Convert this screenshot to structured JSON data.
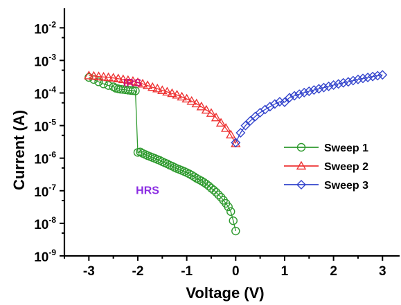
{
  "chart_data": {
    "type": "scatter",
    "title": "",
    "xlabel": "Voltage (V)",
    "ylabel": "Current (A)",
    "xlim": [
      -3.5,
      3.35
    ],
    "ylim_exp": [
      -9,
      -1.4
    ],
    "yscale": "log",
    "grid": false,
    "legend_placement": "right",
    "x_ticks": [
      {
        "value": -3,
        "label": "-3"
      },
      {
        "value": -2,
        "label": "-2"
      },
      {
        "value": -1,
        "label": "-1"
      },
      {
        "value": 0,
        "label": "0"
      },
      {
        "value": 1,
        "label": "1"
      },
      {
        "value": 2,
        "label": "2"
      },
      {
        "value": 3,
        "label": "3"
      }
    ],
    "y_ticks": [
      {
        "exp": -9,
        "base": "10",
        "power": "-9"
      },
      {
        "exp": -8,
        "base": "10",
        "power": "-8"
      },
      {
        "exp": -7,
        "base": "10",
        "power": "-7"
      },
      {
        "exp": -6,
        "base": "10",
        "power": "-6"
      },
      {
        "exp": -5,
        "base": "10",
        "power": "-5"
      },
      {
        "exp": -4,
        "base": "10",
        "power": "-4"
      },
      {
        "exp": -3,
        "base": "10",
        "power": "-3"
      },
      {
        "exp": -2,
        "base": "10",
        "power": "-2"
      }
    ],
    "annotations": [
      {
        "text": "IRS",
        "x": -2.3,
        "y": 0.000158,
        "color": "#cc1177"
      },
      {
        "text": "HRS",
        "x": -2.04,
        "y": 7.94e-08,
        "color": "#8a2be2"
      }
    ],
    "series": [
      {
        "name": "Sweep 1",
        "color": "#2e9a2e",
        "marker": "circle",
        "points": [
          [
            -3.0,
            0.0003
          ],
          [
            -2.9,
            0.00026
          ],
          [
            -2.8,
            0.00022
          ],
          [
            -2.7,
            0.00019
          ],
          [
            -2.6,
            0.00017
          ],
          [
            -2.5,
            0.000155
          ],
          [
            -2.45,
            0.00014
          ],
          [
            -2.4,
            0.000135
          ],
          [
            -2.35,
            0.00013
          ],
          [
            -2.3,
            0.000128
          ],
          [
            -2.25,
            0.000125
          ],
          [
            -2.2,
            0.000122
          ],
          [
            -2.15,
            0.00012
          ],
          [
            -2.1,
            0.000118
          ],
          [
            -2.05,
            0.000116
          ],
          [
            -2.0,
            1.5e-06
          ],
          [
            -1.95,
            1.55e-06
          ],
          [
            -1.9,
            1.4e-06
          ],
          [
            -1.85,
            1.3e-06
          ],
          [
            -1.8,
            1.2e-06
          ],
          [
            -1.75,
            1.12e-06
          ],
          [
            -1.7,
            1.05e-06
          ],
          [
            -1.65,
            9.8e-07
          ],
          [
            -1.6,
            9.1e-07
          ],
          [
            -1.55,
            8.5e-07
          ],
          [
            -1.5,
            7.8e-07
          ],
          [
            -1.45,
            7.2e-07
          ],
          [
            -1.4,
            6.7e-07
          ],
          [
            -1.35,
            6.1e-07
          ],
          [
            -1.3,
            5.7e-07
          ],
          [
            -1.25,
            5.2e-07
          ],
          [
            -1.2,
            4.8e-07
          ],
          [
            -1.15,
            4.5e-07
          ],
          [
            -1.1,
            4.2e-07
          ],
          [
            -1.05,
            3.9e-07
          ],
          [
            -1.0,
            3.6e-07
          ],
          [
            -0.95,
            3.3e-07
          ],
          [
            -0.9,
            3e-07
          ],
          [
            -0.85,
            2.7e-07
          ],
          [
            -0.8,
            2.4e-07
          ],
          [
            -0.75,
            2.2e-07
          ],
          [
            -0.7,
            2e-07
          ],
          [
            -0.65,
            1.8e-07
          ],
          [
            -0.6,
            1.6e-07
          ],
          [
            -0.55,
            1.4e-07
          ],
          [
            -0.5,
            1.2e-07
          ],
          [
            -0.45,
            1.05e-07
          ],
          [
            -0.4,
            9e-08
          ],
          [
            -0.35,
            7.5e-08
          ],
          [
            -0.3,
            6.3e-08
          ],
          [
            -0.25,
            5.1e-08
          ],
          [
            -0.2,
            4.1e-08
          ],
          [
            -0.15,
            3.2e-08
          ],
          [
            -0.1,
            2.3e-08
          ],
          [
            -0.05,
            1.2e-08
          ],
          [
            0.0,
            5.8e-09
          ]
        ]
      },
      {
        "name": "Sweep 2",
        "color": "#ee3333",
        "marker": "triangle",
        "points": [
          [
            -3.0,
            0.00034
          ],
          [
            -2.9,
            0.00033
          ],
          [
            -2.8,
            0.00032
          ],
          [
            -2.7,
            0.00031
          ],
          [
            -2.6,
            0.0003
          ],
          [
            -2.5,
            0.00029
          ],
          [
            -2.4,
            0.000275
          ],
          [
            -2.3,
            0.00026
          ],
          [
            -2.2,
            0.000245
          ],
          [
            -2.1,
            0.00023
          ],
          [
            -2.0,
            0.00021
          ],
          [
            -1.9,
            0.00019
          ],
          [
            -1.8,
            0.00017
          ],
          [
            -1.7,
            0.00015
          ],
          [
            -1.6,
            0.000135
          ],
          [
            -1.5,
            0.00012
          ],
          [
            -1.4,
            0.000108
          ],
          [
            -1.3,
            9.7e-05
          ],
          [
            -1.2,
            8.7e-05
          ],
          [
            -1.1,
            7.6e-05
          ],
          [
            -1.0,
            6.6e-05
          ],
          [
            -0.9,
            5.6e-05
          ],
          [
            -0.8,
            4.7e-05
          ],
          [
            -0.7,
            3.8e-05
          ],
          [
            -0.6,
            3e-05
          ],
          [
            -0.5,
            2.4e-05
          ],
          [
            -0.4,
            1.75e-05
          ],
          [
            -0.3,
            1.2e-05
          ],
          [
            -0.2,
            8.3e-06
          ],
          [
            -0.1,
            5.2e-06
          ],
          [
            0.0,
            2.8e-06
          ]
        ]
      },
      {
        "name": "Sweep 3",
        "color": "#3344cc",
        "marker": "diamond",
        "points": [
          [
            0.0,
            3e-06
          ],
          [
            0.1,
            6e-06
          ],
          [
            0.2,
            1e-05
          ],
          [
            0.3,
            1.4e-05
          ],
          [
            0.4,
            1.9e-05
          ],
          [
            0.5,
            2.5e-05
          ],
          [
            0.6,
            3.1e-05
          ],
          [
            0.7,
            3.8e-05
          ],
          [
            0.8,
            4.6e-05
          ],
          [
            0.9,
            5.4e-05
          ],
          [
            1.0,
            5.2e-05
          ],
          [
            1.1,
            7.2e-05
          ],
          [
            1.2,
            8.2e-05
          ],
          [
            1.3,
            9.2e-05
          ],
          [
            1.4,
            0.000103
          ],
          [
            1.5,
            0.000113
          ],
          [
            1.6,
            0.000124
          ],
          [
            1.7,
            0.000135
          ],
          [
            1.8,
            0.000147
          ],
          [
            1.9,
            0.00016
          ],
          [
            2.0,
            0.000175
          ],
          [
            2.1,
            0.00019
          ],
          [
            2.2,
            0.000205
          ],
          [
            2.3,
            0.00022
          ],
          [
            2.4,
            0.00024
          ],
          [
            2.5,
            0.00026
          ],
          [
            2.6,
            0.00028
          ],
          [
            2.7,
            0.0003
          ],
          [
            2.8,
            0.00032
          ],
          [
            2.9,
            0.00034
          ],
          [
            3.0,
            0.00036
          ]
        ]
      }
    ]
  }
}
